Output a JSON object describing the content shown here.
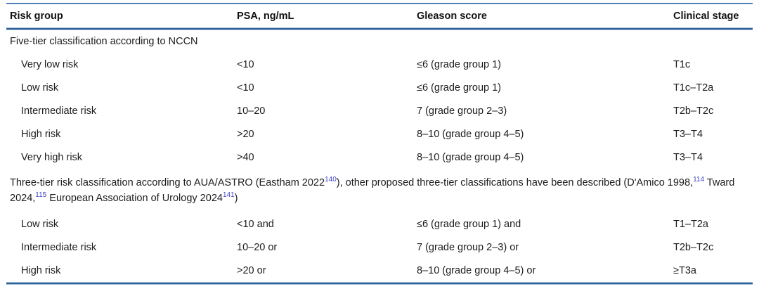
{
  "colors": {
    "rule_blue_dark": "#2f6195",
    "rule_blue_light": "#a3c0de",
    "rule_blue_top": "#4f80b5",
    "reference_blue": "#4343cd",
    "text": "#1c1c1e"
  },
  "table": {
    "columns": [
      "Risk group",
      "PSA, ng/mL",
      "Gleason score",
      "Clinical stage"
    ],
    "sections": [
      {
        "title_segments": [
          {
            "text": "Five-tier classification according to NCCN",
            "sup": ""
          }
        ],
        "rows": [
          [
            "Very low risk",
            "<10",
            "≤6 (grade group 1)",
            "T1c"
          ],
          [
            "Low risk",
            "<10",
            "≤6 (grade group 1)",
            "T1c–T2a"
          ],
          [
            "Intermediate risk",
            "10–20",
            "7 (grade group 2–3)",
            "T2b–T2c"
          ],
          [
            "High risk",
            ">20",
            "8–10 (grade group 4–5)",
            "T3–T4"
          ],
          [
            "Very high risk",
            ">40",
            "8–10 (grade group 4–5)",
            "T3–T4"
          ]
        ]
      },
      {
        "title_segments": [
          {
            "text": "Three-tier risk classification according to AUA/ASTRO (Eastham 2022",
            "sup": "140"
          },
          {
            "text": "), other proposed three-tier classifications have been described (D'Amico 1998,",
            "sup": "114"
          },
          {
            "text": " Tward 2024,",
            "sup": "115"
          },
          {
            "text": " European Association of Urology 2024",
            "sup": "141"
          },
          {
            "text": ")",
            "sup": ""
          }
        ],
        "rows": [
          [
            "Low risk",
            "<10 and",
            "≤6 (grade group 1) and",
            "T1–T2a"
          ],
          [
            "Intermediate risk",
            "10–20 or",
            "7 (grade group 2–3) or",
            "T2b–T2c"
          ],
          [
            "High risk",
            ">20 or",
            "8–10 (grade group 4–5) or",
            "≥T3a"
          ]
        ]
      }
    ]
  }
}
